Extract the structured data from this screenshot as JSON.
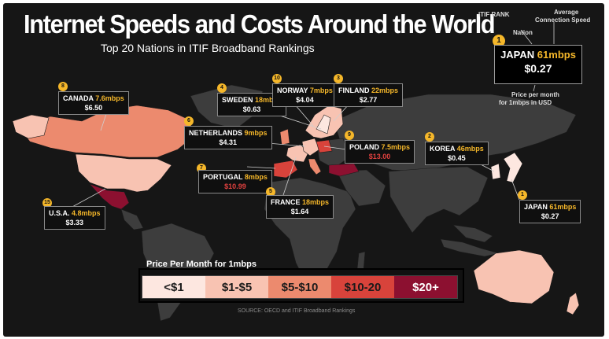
{
  "header": {
    "title": "Internet Speeds and Costs Around the World",
    "subtitle": "Top 20 Nations in ITIF Broadband Rankings"
  },
  "key": {
    "itif_rank_label": "ITIF RANK",
    "avg_speed_label_1": "Average",
    "avg_speed_label_2": "Connection Speed",
    "nation_label": "Nation",
    "rank": "1",
    "country": "JAPAN",
    "speed": "61mbps",
    "price": "$0.27",
    "price_label_1": "Price per month",
    "price_label_2": "for 1mbps in USD"
  },
  "countries": [
    {
      "rank": "8",
      "name": "CANADA",
      "speed": "7.6mbps",
      "price": "$6.50",
      "tier": "5-10"
    },
    {
      "rank": "4",
      "name": "SWEDEN",
      "speed": "18mbps",
      "price": "$0.63",
      "tier": "<1"
    },
    {
      "rank": "10",
      "name": "NORWAY",
      "speed": "7mbps",
      "price": "$4.04",
      "tier": "1-5"
    },
    {
      "rank": "3",
      "name": "FINLAND",
      "speed": "22mbps",
      "price": "$2.77",
      "tier": "1-5"
    },
    {
      "rank": "6",
      "name": "NETHERLANDS",
      "speed": "9mbps",
      "price": "$4.31",
      "tier": "1-5"
    },
    {
      "rank": "9",
      "name": "POLAND",
      "speed": "7.5mbps",
      "price": "$13.00",
      "tier": "10-20"
    },
    {
      "rank": "2",
      "name": "KOREA",
      "speed": "46mbps",
      "price": "$0.45",
      "tier": "<1"
    },
    {
      "rank": "7",
      "name": "PORTUGAL",
      "speed": "8mbps",
      "price": "$10.99",
      "tier": "10-20"
    },
    {
      "rank": "5",
      "name": "FRANCE",
      "speed": "18mbps",
      "price": "$1.64",
      "tier": "1-5"
    },
    {
      "rank": "15",
      "name": "U.S.A.",
      "speed": "4.8mbps",
      "price": "$3.33",
      "tier": "1-5"
    },
    {
      "rank": "1",
      "name": "JAPAN",
      "speed": "61mbps",
      "price": "$0.27",
      "tier": "<1"
    }
  ],
  "legend": {
    "title": "Price Per Month for 1mbps",
    "tiers": [
      {
        "label": "<$1",
        "color": "#fde7e0",
        "text": "#1a1a1a"
      },
      {
        "label": "$1-$5",
        "color": "#f8c3b2",
        "text": "#1a1a1a"
      },
      {
        "label": "$5-$10",
        "color": "#ec8a6e",
        "text": "#1a1a1a"
      },
      {
        "label": "$10-20",
        "color": "#d8433b",
        "text": "#1a1a1a"
      },
      {
        "label": "$20+",
        "color": "#8c1030",
        "text": "#ffffff"
      }
    ]
  },
  "source": "SOURCE: OECD and ITIF Broadband Rankings",
  "colors": {
    "background": "#161616",
    "land": "#3b3b3b",
    "accent": "#f5b72a"
  }
}
